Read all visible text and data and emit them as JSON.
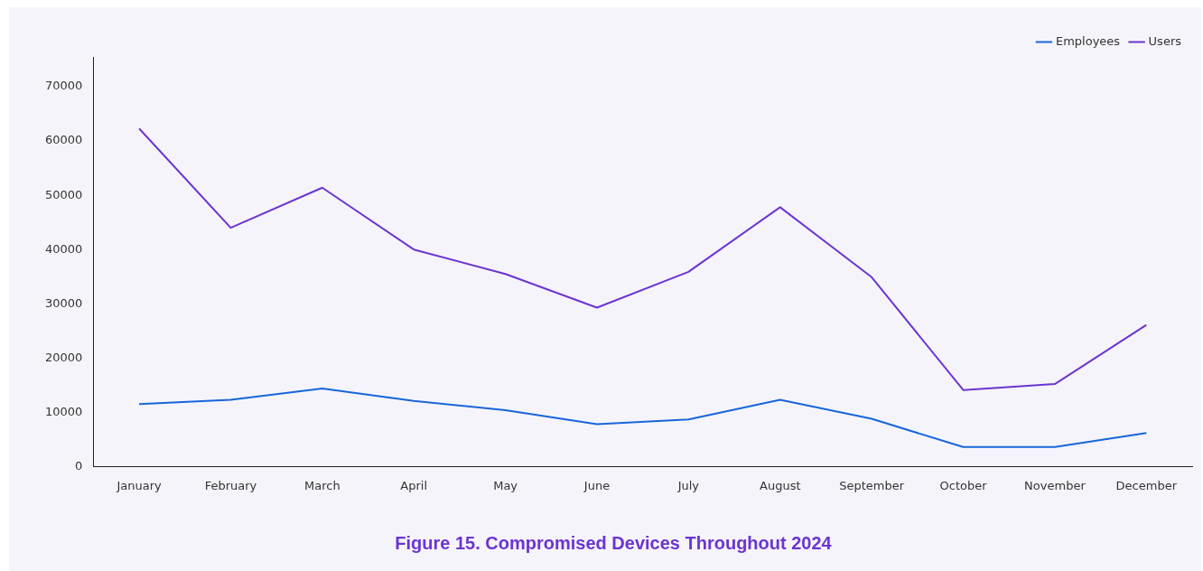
{
  "chart_data": {
    "type": "line",
    "title": "Figure 15. Compromised Devices Throughout 2024",
    "categories": [
      "January",
      "February",
      "March",
      "April",
      "May",
      "June",
      "July",
      "August",
      "September",
      "October",
      "November",
      "December"
    ],
    "series": [
      {
        "name": "Employees",
        "color": "#1766d9",
        "values": [
          11500,
          12300,
          14400,
          12100,
          10400,
          7800,
          8700,
          12300,
          8800,
          3600,
          3600,
          6200
        ]
      },
      {
        "name": "Users",
        "color": "#6b35d0",
        "values": [
          62300,
          44000,
          51400,
          40000,
          35500,
          29300,
          35900,
          47800,
          34900,
          14100,
          15200,
          26100
        ]
      }
    ],
    "ylim": [
      0,
      75500
    ],
    "yticks": [
      0,
      10000,
      20000,
      30000,
      40000,
      50000,
      60000,
      70000
    ],
    "grid": false,
    "legend": "top right",
    "marker": "none",
    "line_style": "solid"
  }
}
